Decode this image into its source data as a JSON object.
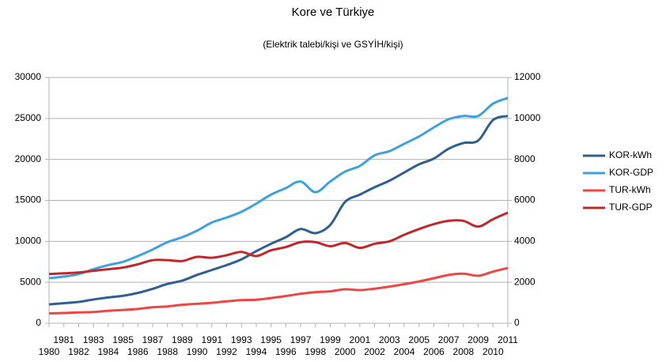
{
  "chart_data": {
    "type": "line",
    "title": "Kore ve Türkiye",
    "subtitle": "(Elektrik talebi/kişi ve GSYİH/kişi)",
    "categories": [
      "1980",
      "1981",
      "1982",
      "1983",
      "1984",
      "1985",
      "1986",
      "1987",
      "1988",
      "1989",
      "1990",
      "1991",
      "1992",
      "1993",
      "1994",
      "1995",
      "1996",
      "1997",
      "1998",
      "1999",
      "2000",
      "2001",
      "2002",
      "2003",
      "2004",
      "2005",
      "2006",
      "2007",
      "2008",
      "2009",
      "2010",
      "2011"
    ],
    "ylim": [
      0,
      30000
    ],
    "yticks": [
      0,
      5000,
      10000,
      15000,
      20000,
      25000,
      30000
    ],
    "y2lim": [
      0,
      12000
    ],
    "y2ticks": [
      0,
      2000,
      4000,
      6000,
      8000,
      10000,
      12000
    ],
    "grid": true,
    "legend": "right",
    "series": [
      {
        "name": "KOR-kWh",
        "color": "#2f5f8f",
        "axis": "y2",
        "values": [
          920,
          980,
          1040,
          1160,
          1260,
          1340,
          1480,
          1680,
          1920,
          2080,
          2360,
          2600,
          2840,
          3120,
          3520,
          3880,
          4200,
          4600,
          4400,
          4800,
          5920,
          6280,
          6640,
          6960,
          7360,
          7760,
          8040,
          8520,
          8800,
          8920,
          9920,
          10120
        ]
      },
      {
        "name": "KOR-GDP",
        "color": "#3ea1dd",
        "values": [
          5500,
          5700,
          6000,
          6600,
          7100,
          7500,
          8200,
          9000,
          9900,
          10500,
          11300,
          12300,
          12900,
          13600,
          14600,
          15700,
          16500,
          17300,
          16000,
          17300,
          18500,
          19200,
          20500,
          21000,
          21900,
          22800,
          23900,
          24900,
          25300,
          25300,
          26800,
          27500
        ]
      },
      {
        "name": "TUR-kWh",
        "color": "#ef4545",
        "axis": "y2",
        "values": [
          480,
          500,
          530,
          550,
          610,
          650,
          700,
          780,
          820,
          900,
          950,
          1000,
          1070,
          1130,
          1150,
          1230,
          1330,
          1440,
          1520,
          1560,
          1660,
          1620,
          1690,
          1790,
          1910,
          2040,
          2200,
          2360,
          2420,
          2320,
          2520,
          2700
        ]
      },
      {
        "name": "TUR-GDP",
        "color": "#c0272d",
        "values": [
          6000,
          6100,
          6200,
          6400,
          6600,
          6800,
          7200,
          7700,
          7700,
          7600,
          8100,
          8000,
          8300,
          8700,
          8200,
          8900,
          9300,
          9900,
          9900,
          9400,
          9800,
          9200,
          9700,
          10000,
          10800,
          11500,
          12100,
          12500,
          12500,
          11800,
          12700,
          13500
        ]
      }
    ]
  }
}
